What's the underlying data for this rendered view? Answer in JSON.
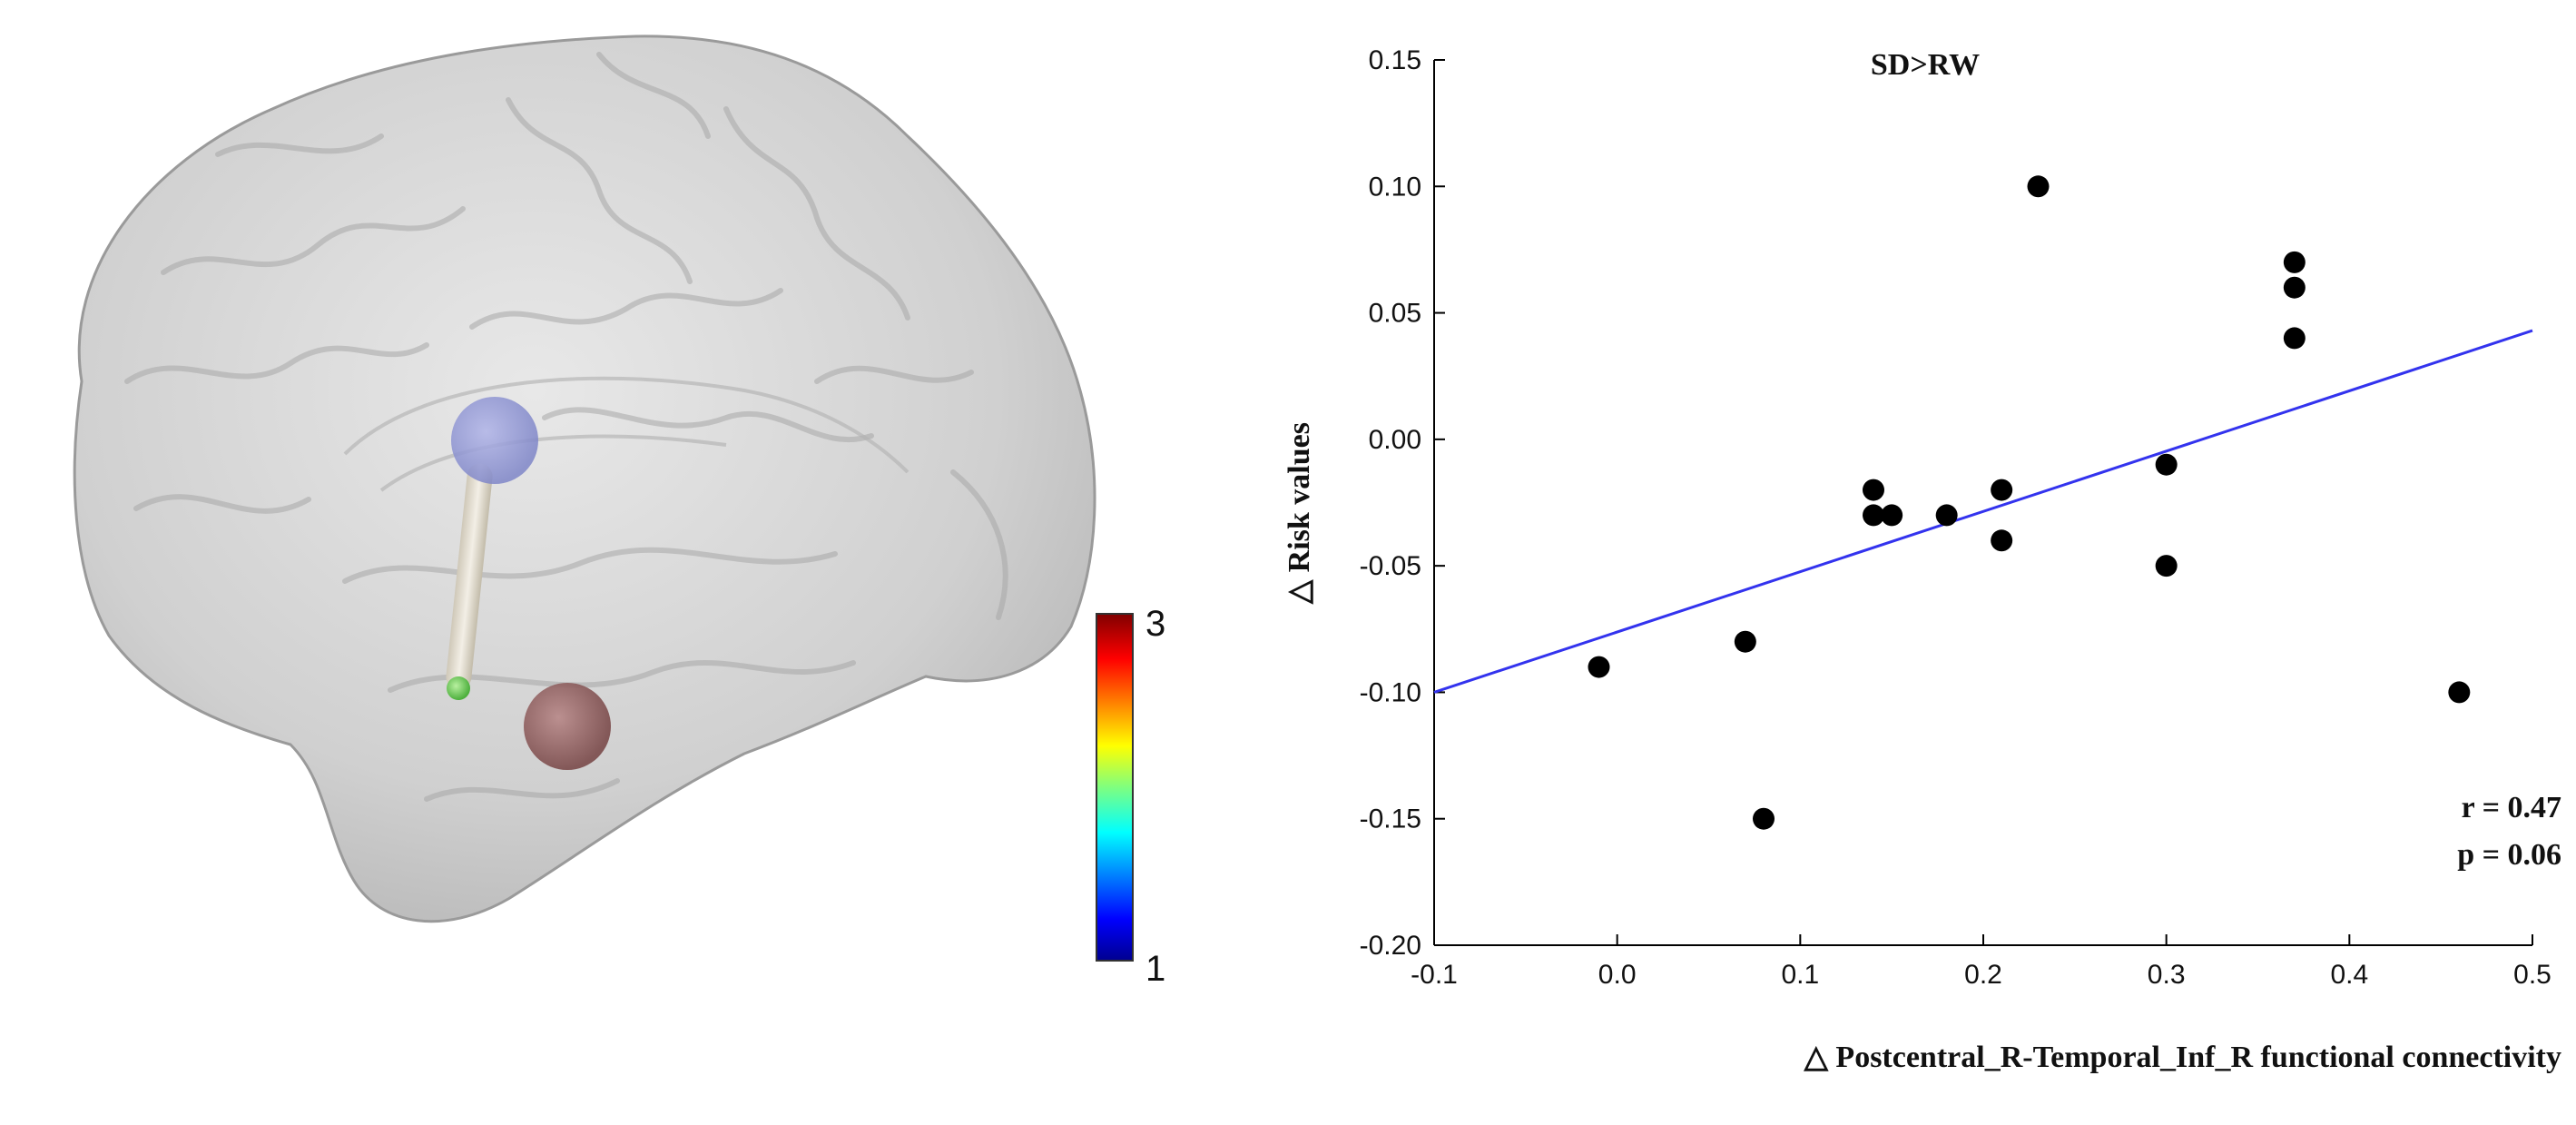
{
  "colorbar": {
    "max_label": "3",
    "min_label": "1",
    "min": 1,
    "max": 3
  },
  "chart_data": {
    "type": "scatter",
    "title": "SD>RW",
    "xlabel": "△ Postcentral_R-Temporal_Inf_R functional connectivity",
    "ylabel": "△ Risk values",
    "xlim": [
      -0.1,
      0.5
    ],
    "ylim": [
      -0.2,
      0.15
    ],
    "xticks": [
      -0.1,
      0.0,
      0.1,
      0.2,
      0.3,
      0.4,
      0.5
    ],
    "xtick_labels": [
      "-0.1",
      "0.0",
      "0.1",
      "0.2",
      "0.3",
      "0.4",
      "0.5"
    ],
    "yticks": [
      -0.2,
      -0.15,
      -0.1,
      -0.05,
      0.0,
      0.05,
      0.1,
      0.15
    ],
    "ytick_labels": [
      "-0.20",
      "-0.15",
      "-0.10",
      "-0.05",
      "0.00",
      "0.05",
      "0.10",
      "0.15"
    ],
    "grid": false,
    "points": [
      {
        "x": -0.01,
        "y": -0.09
      },
      {
        "x": 0.07,
        "y": -0.08
      },
      {
        "x": 0.08,
        "y": -0.15
      },
      {
        "x": 0.14,
        "y": -0.02
      },
      {
        "x": 0.14,
        "y": -0.03
      },
      {
        "x": 0.15,
        "y": -0.03
      },
      {
        "x": 0.18,
        "y": -0.03
      },
      {
        "x": 0.21,
        "y": -0.02
      },
      {
        "x": 0.21,
        "y": -0.04
      },
      {
        "x": 0.23,
        "y": 0.1
      },
      {
        "x": 0.3,
        "y": -0.01
      },
      {
        "x": 0.3,
        "y": -0.05
      },
      {
        "x": 0.37,
        "y": 0.07
      },
      {
        "x": 0.37,
        "y": 0.06
      },
      {
        "x": 0.37,
        "y": 0.04
      },
      {
        "x": 0.46,
        "y": -0.1
      }
    ],
    "fit_line": {
      "x": [
        -0.1,
        0.5
      ],
      "y": [
        -0.1,
        0.043
      ],
      "color": "#3333ee"
    },
    "point_color": "#000000",
    "annotations": [
      "r = 0.47",
      "p = 0.06"
    ]
  }
}
